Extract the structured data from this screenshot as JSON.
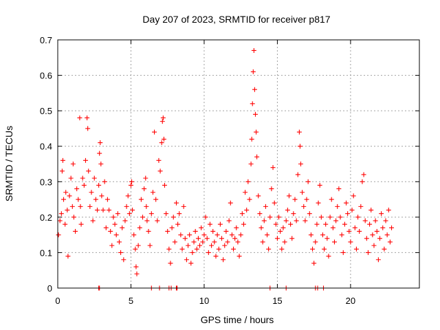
{
  "chart_data": {
    "type": "scatter",
    "title": "Day 207 of 2023, SRMTID for receiver p817",
    "xlabel": "GPS time / hours",
    "ylabel": "SRMTID / TECUs",
    "xlim": [
      0,
      24.7
    ],
    "ylim": [
      0,
      0.7
    ],
    "xticks": [
      0,
      5,
      10,
      15,
      20
    ],
    "xtick_labels": [
      "0",
      "5",
      "10",
      "15",
      "20"
    ],
    "yticks": [
      0,
      0.1,
      0.2,
      0.3,
      0.4,
      0.5,
      0.6,
      0.7
    ],
    "ytick_labels": [
      "0",
      "0.1",
      "0.2",
      "0.3",
      "0.4",
      "0.5",
      "0.6",
      "0.7"
    ],
    "grid": true,
    "marker": "plus",
    "color": "#ff0000",
    "series": [
      {
        "name": "SRMTID",
        "points": [
          [
            0.05,
            0.15
          ],
          [
            0.15,
            0.19
          ],
          [
            0.25,
            0.21
          ],
          [
            0.3,
            0.33
          ],
          [
            0.35,
            0.36
          ],
          [
            0.4,
            0.25
          ],
          [
            0.5,
            0.18
          ],
          [
            0.55,
            0.27
          ],
          [
            0.65,
            0.22
          ],
          [
            0.7,
            0.09
          ],
          [
            0.8,
            0.26
          ],
          [
            0.9,
            0.31
          ],
          [
            1.0,
            0.23
          ],
          [
            1.05,
            0.35
          ],
          [
            1.1,
            0.2
          ],
          [
            1.2,
            0.16
          ],
          [
            1.3,
            0.28
          ],
          [
            1.4,
            0.25
          ],
          [
            1.5,
            0.48
          ],
          [
            1.55,
            0.23
          ],
          [
            1.6,
            0.18
          ],
          [
            1.7,
            0.31
          ],
          [
            1.8,
            0.29
          ],
          [
            1.9,
            0.36
          ],
          [
            2.0,
            0.48
          ],
          [
            2.05,
            0.45
          ],
          [
            2.1,
            0.33
          ],
          [
            2.2,
            0.23
          ],
          [
            2.3,
            0.27
          ],
          [
            2.4,
            0.19
          ],
          [
            2.5,
            0.31
          ],
          [
            2.6,
            0.25
          ],
          [
            2.7,
            0.22
          ],
          [
            2.8,
            0.29
          ],
          [
            2.85,
            0.38
          ],
          [
            2.9,
            0.41
          ],
          [
            2.95,
            0.35
          ],
          [
            3.0,
            0.26
          ],
          [
            3.1,
            0.22
          ],
          [
            3.2,
            0.3
          ],
          [
            3.3,
            0.17
          ],
          [
            3.4,
            0.25
          ],
          [
            3.5,
            0.22
          ],
          [
            3.6,
            0.16
          ],
          [
            3.7,
            0.12
          ],
          [
            3.8,
            0.2
          ],
          [
            3.9,
            0.18
          ],
          [
            4.0,
            0.15
          ],
          [
            4.1,
            0.21
          ],
          [
            4.2,
            0.13
          ],
          [
            4.3,
            0.1
          ],
          [
            4.4,
            0.17
          ],
          [
            4.5,
            0.08
          ],
          [
            4.6,
            0.19
          ],
          [
            4.7,
            0.23
          ],
          [
            4.8,
            0.26
          ],
          [
            4.9,
            0.21
          ],
          [
            5.0,
            0.29
          ],
          [
            5.05,
            0.3
          ],
          [
            5.1,
            0.22
          ],
          [
            5.2,
            0.15
          ],
          [
            5.3,
            0.11
          ],
          [
            5.35,
            0.06
          ],
          [
            5.4,
            0.04
          ],
          [
            5.5,
            0.12
          ],
          [
            5.6,
            0.17
          ],
          [
            5.7,
            0.25
          ],
          [
            5.8,
            0.2
          ],
          [
            5.9,
            0.28
          ],
          [
            6.0,
            0.31
          ],
          [
            6.05,
            0.23
          ],
          [
            6.1,
            0.19
          ],
          [
            6.2,
            0.16
          ],
          [
            6.3,
            0.12
          ],
          [
            6.4,
            0.21
          ],
          [
            6.5,
            0.27
          ],
          [
            6.6,
            0.44
          ],
          [
            6.7,
            0.25
          ],
          [
            6.8,
            0.19
          ],
          [
            6.9,
            0.36
          ],
          [
            7.0,
            0.33
          ],
          [
            7.1,
            0.41
          ],
          [
            7.15,
            0.47
          ],
          [
            7.2,
            0.48
          ],
          [
            7.25,
            0.42
          ],
          [
            7.3,
            0.29
          ],
          [
            7.4,
            0.21
          ],
          [
            7.5,
            0.16
          ],
          [
            7.6,
            0.11
          ],
          [
            7.7,
            0.07
          ],
          [
            7.8,
            0.17
          ],
          [
            7.9,
            0.2
          ],
          [
            8.0,
            0.13
          ],
          [
            8.1,
            0.24
          ],
          [
            8.2,
            0.18
          ],
          [
            8.3,
            0.21
          ],
          [
            8.4,
            0.15
          ],
          [
            8.5,
            0.11
          ],
          [
            8.6,
            0.23
          ],
          [
            8.7,
            0.14
          ],
          [
            8.8,
            0.08
          ],
          [
            8.9,
            0.12
          ],
          [
            9.0,
            0.15
          ],
          [
            9.1,
            0.07
          ],
          [
            9.2,
            0.1
          ],
          [
            9.3,
            0.13
          ],
          [
            9.4,
            0.16
          ],
          [
            9.5,
            0.11
          ],
          [
            9.6,
            0.14
          ],
          [
            9.7,
            0.12
          ],
          [
            9.8,
            0.17
          ],
          [
            9.9,
            0.13
          ],
          [
            10.0,
            0.15
          ],
          [
            10.1,
            0.2
          ],
          [
            10.2,
            0.14
          ],
          [
            10.3,
            0.1
          ],
          [
            10.4,
            0.18
          ],
          [
            10.5,
            0.12
          ],
          [
            10.6,
            0.16
          ],
          [
            10.7,
            0.13
          ],
          [
            10.8,
            0.09
          ],
          [
            10.9,
            0.15
          ],
          [
            11.0,
            0.11
          ],
          [
            11.1,
            0.18
          ],
          [
            11.2,
            0.14
          ],
          [
            11.3,
            0.08
          ],
          [
            11.4,
            0.12
          ],
          [
            11.5,
            0.16
          ],
          [
            11.6,
            0.13
          ],
          [
            11.7,
            0.19
          ],
          [
            11.8,
            0.24
          ],
          [
            11.9,
            0.15
          ],
          [
            12.0,
            0.11
          ],
          [
            12.1,
            0.14
          ],
          [
            12.2,
            0.17
          ],
          [
            12.3,
            0.13
          ],
          [
            12.4,
            0.09
          ],
          [
            12.5,
            0.15
          ],
          [
            12.6,
            0.21
          ],
          [
            12.7,
            0.18
          ],
          [
            12.8,
            0.27
          ],
          [
            12.9,
            0.22
          ],
          [
            13.0,
            0.3
          ],
          [
            13.1,
            0.25
          ],
          [
            13.2,
            0.35
          ],
          [
            13.25,
            0.42
          ],
          [
            13.3,
            0.52
          ],
          [
            13.35,
            0.61
          ],
          [
            13.4,
            0.67
          ],
          [
            13.45,
            0.56
          ],
          [
            13.5,
            0.49
          ],
          [
            13.55,
            0.44
          ],
          [
            13.6,
            0.37
          ],
          [
            13.7,
            0.26
          ],
          [
            13.8,
            0.21
          ],
          [
            13.9,
            0.17
          ],
          [
            14.0,
            0.13
          ],
          [
            14.1,
            0.19
          ],
          [
            14.2,
            0.23
          ],
          [
            14.3,
            0.15
          ],
          [
            14.4,
            0.11
          ],
          [
            14.5,
            0.2
          ],
          [
            14.6,
            0.28
          ],
          [
            14.7,
            0.34
          ],
          [
            14.8,
            0.24
          ],
          [
            14.9,
            0.18
          ],
          [
            15.0,
            0.14
          ],
          [
            15.1,
            0.2
          ],
          [
            15.2,
            0.16
          ],
          [
            15.3,
            0.11
          ],
          [
            15.4,
            0.17
          ],
          [
            15.5,
            0.13
          ],
          [
            15.6,
            0.19
          ],
          [
            15.7,
            0.22
          ],
          [
            15.8,
            0.26
          ],
          [
            15.9,
            0.18
          ],
          [
            16.0,
            0.14
          ],
          [
            16.1,
            0.21
          ],
          [
            16.2,
            0.25
          ],
          [
            16.3,
            0.19
          ],
          [
            16.4,
            0.32
          ],
          [
            16.5,
            0.44
          ],
          [
            16.55,
            0.4
          ],
          [
            16.6,
            0.35
          ],
          [
            16.7,
            0.27
          ],
          [
            16.8,
            0.23
          ],
          [
            16.9,
            0.19
          ],
          [
            17.0,
            0.25
          ],
          [
            17.1,
            0.3
          ],
          [
            17.2,
            0.21
          ],
          [
            17.3,
            0.15
          ],
          [
            17.4,
            0.11
          ],
          [
            17.5,
            0.07
          ],
          [
            17.6,
            0.13
          ],
          [
            17.7,
            0.18
          ],
          [
            17.8,
            0.24
          ],
          [
            17.9,
            0.29
          ],
          [
            18.0,
            0.2
          ],
          [
            18.1,
            0.15
          ],
          [
            18.2,
            0.11
          ],
          [
            18.3,
            0.18
          ],
          [
            18.4,
            0.14
          ],
          [
            18.5,
            0.09
          ],
          [
            18.6,
            0.2
          ],
          [
            18.7,
            0.25
          ],
          [
            18.8,
            0.17
          ],
          [
            18.9,
            0.13
          ],
          [
            19.0,
            0.19
          ],
          [
            19.1,
            0.23
          ],
          [
            19.2,
            0.28
          ],
          [
            19.3,
            0.2
          ],
          [
            19.4,
            0.15
          ],
          [
            19.5,
            0.1
          ],
          [
            19.6,
            0.18
          ],
          [
            19.7,
            0.24
          ],
          [
            19.8,
            0.21
          ],
          [
            19.9,
            0.16
          ],
          [
            20.0,
            0.13
          ],
          [
            20.1,
            0.22
          ],
          [
            20.2,
            0.26
          ],
          [
            20.3,
            0.17
          ],
          [
            20.4,
            0.11
          ],
          [
            20.5,
            0.2
          ],
          [
            20.6,
            0.16
          ],
          [
            20.7,
            0.23
          ],
          [
            20.8,
            0.3
          ],
          [
            20.9,
            0.32
          ],
          [
            21.0,
            0.19
          ],
          [
            21.1,
            0.14
          ],
          [
            21.2,
            0.1
          ],
          [
            21.3,
            0.18
          ],
          [
            21.4,
            0.22
          ],
          [
            21.5,
            0.15
          ],
          [
            21.6,
            0.12
          ],
          [
            21.7,
            0.19
          ],
          [
            21.8,
            0.16
          ],
          [
            21.9,
            0.08
          ],
          [
            22.0,
            0.14
          ],
          [
            22.1,
            0.21
          ],
          [
            22.2,
            0.17
          ],
          [
            22.3,
            0.11
          ],
          [
            22.4,
            0.19
          ],
          [
            22.5,
            0.15
          ],
          [
            22.6,
            0.22
          ],
          [
            22.7,
            0.13
          ],
          [
            22.8,
            0.17
          ]
        ]
      }
    ],
    "zero_markers_x": [
      2.8,
      2.85,
      6.4,
      6.95,
      7.6,
      7.75,
      8.1,
      8.15,
      14.5,
      15.6,
      17.6,
      17.75,
      18.15
    ]
  }
}
